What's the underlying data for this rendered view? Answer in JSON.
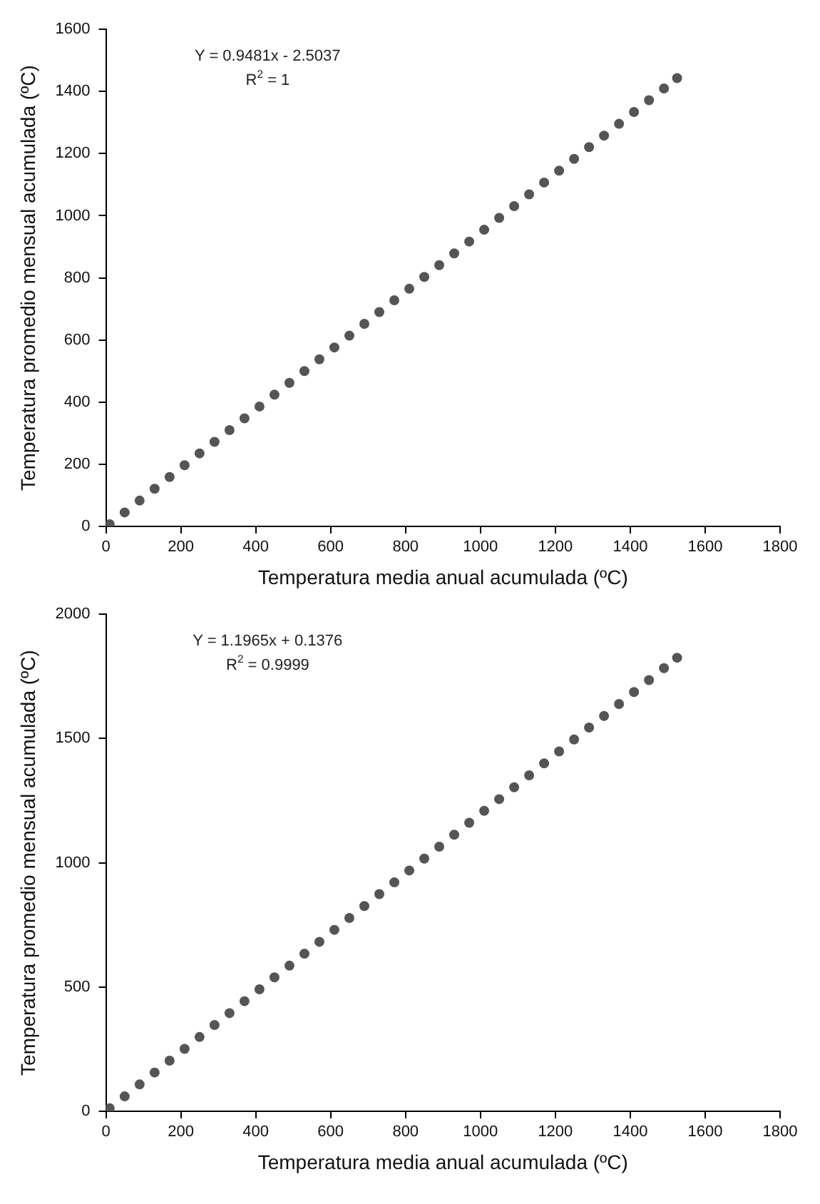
{
  "chart_data": [
    {
      "type": "scatter",
      "xlabel": "Temperatura media anual acumulada (ºC)",
      "ylabel": "Temperatura promedio mensual acumulada (ºC)",
      "annotations": [
        "Y = 0.9481x - 2.5037",
        "R$^{2}$ = 1"
      ],
      "marker": "circle",
      "color": "#555555",
      "x": [
        10,
        50,
        90,
        130,
        170,
        210,
        250,
        290,
        330,
        370,
        410,
        450,
        490,
        530,
        570,
        610,
        650,
        690,
        730,
        770,
        810,
        850,
        890,
        930,
        970,
        1010,
        1050,
        1090,
        1130,
        1170,
        1210,
        1250,
        1290,
        1330,
        1370,
        1410,
        1450,
        1490,
        1525
      ],
      "values": [
        7,
        45,
        83,
        121,
        159,
        197,
        235,
        272,
        310,
        348,
        386,
        424,
        462,
        500,
        538,
        576,
        614,
        652,
        690,
        728,
        765,
        803,
        841,
        879,
        917,
        955,
        993,
        1031,
        1069,
        1107,
        1145,
        1183,
        1221,
        1258,
        1296,
        1334,
        1372,
        1410,
        1443
      ],
      "xlim": [
        0,
        1800
      ],
      "xticks": [
        0,
        200,
        400,
        600,
        800,
        1000,
        1200,
        1400,
        1600,
        1800
      ],
      "ylim": [
        0,
        1600
      ],
      "yticks": [
        0,
        200,
        400,
        600,
        800,
        1000,
        1200,
        1400,
        1600
      ]
    },
    {
      "type": "scatter",
      "xlabel": "Temperatura media anual acumulada (ºC)",
      "ylabel": "Temperatura promedio mensual acumulada (ºC)",
      "annotations": [
        "Y = 1.1965x + 0.1376",
        "R$^{2}$ = 0.9999"
      ],
      "marker": "circle",
      "color": "#555555",
      "x": [
        10,
        50,
        90,
        130,
        170,
        210,
        250,
        290,
        330,
        370,
        410,
        450,
        490,
        530,
        570,
        610,
        650,
        690,
        730,
        770,
        810,
        850,
        890,
        930,
        970,
        1010,
        1050,
        1090,
        1130,
        1170,
        1210,
        1250,
        1290,
        1330,
        1370,
        1410,
        1450,
        1490,
        1525
      ],
      "values": [
        12,
        60,
        108,
        156,
        204,
        251,
        299,
        347,
        395,
        443,
        491,
        539,
        586,
        634,
        682,
        730,
        778,
        826,
        874,
        921,
        969,
        1017,
        1065,
        1113,
        1161,
        1209,
        1256,
        1304,
        1352,
        1400,
        1448,
        1496,
        1544,
        1591,
        1639,
        1687,
        1735,
        1783,
        1825
      ],
      "xlim": [
        0,
        1800
      ],
      "xticks": [
        0,
        200,
        400,
        600,
        800,
        1000,
        1200,
        1400,
        1600,
        1800
      ],
      "ylim": [
        0,
        2000
      ],
      "yticks": [
        0,
        500,
        1000,
        1500,
        2000
      ]
    }
  ]
}
